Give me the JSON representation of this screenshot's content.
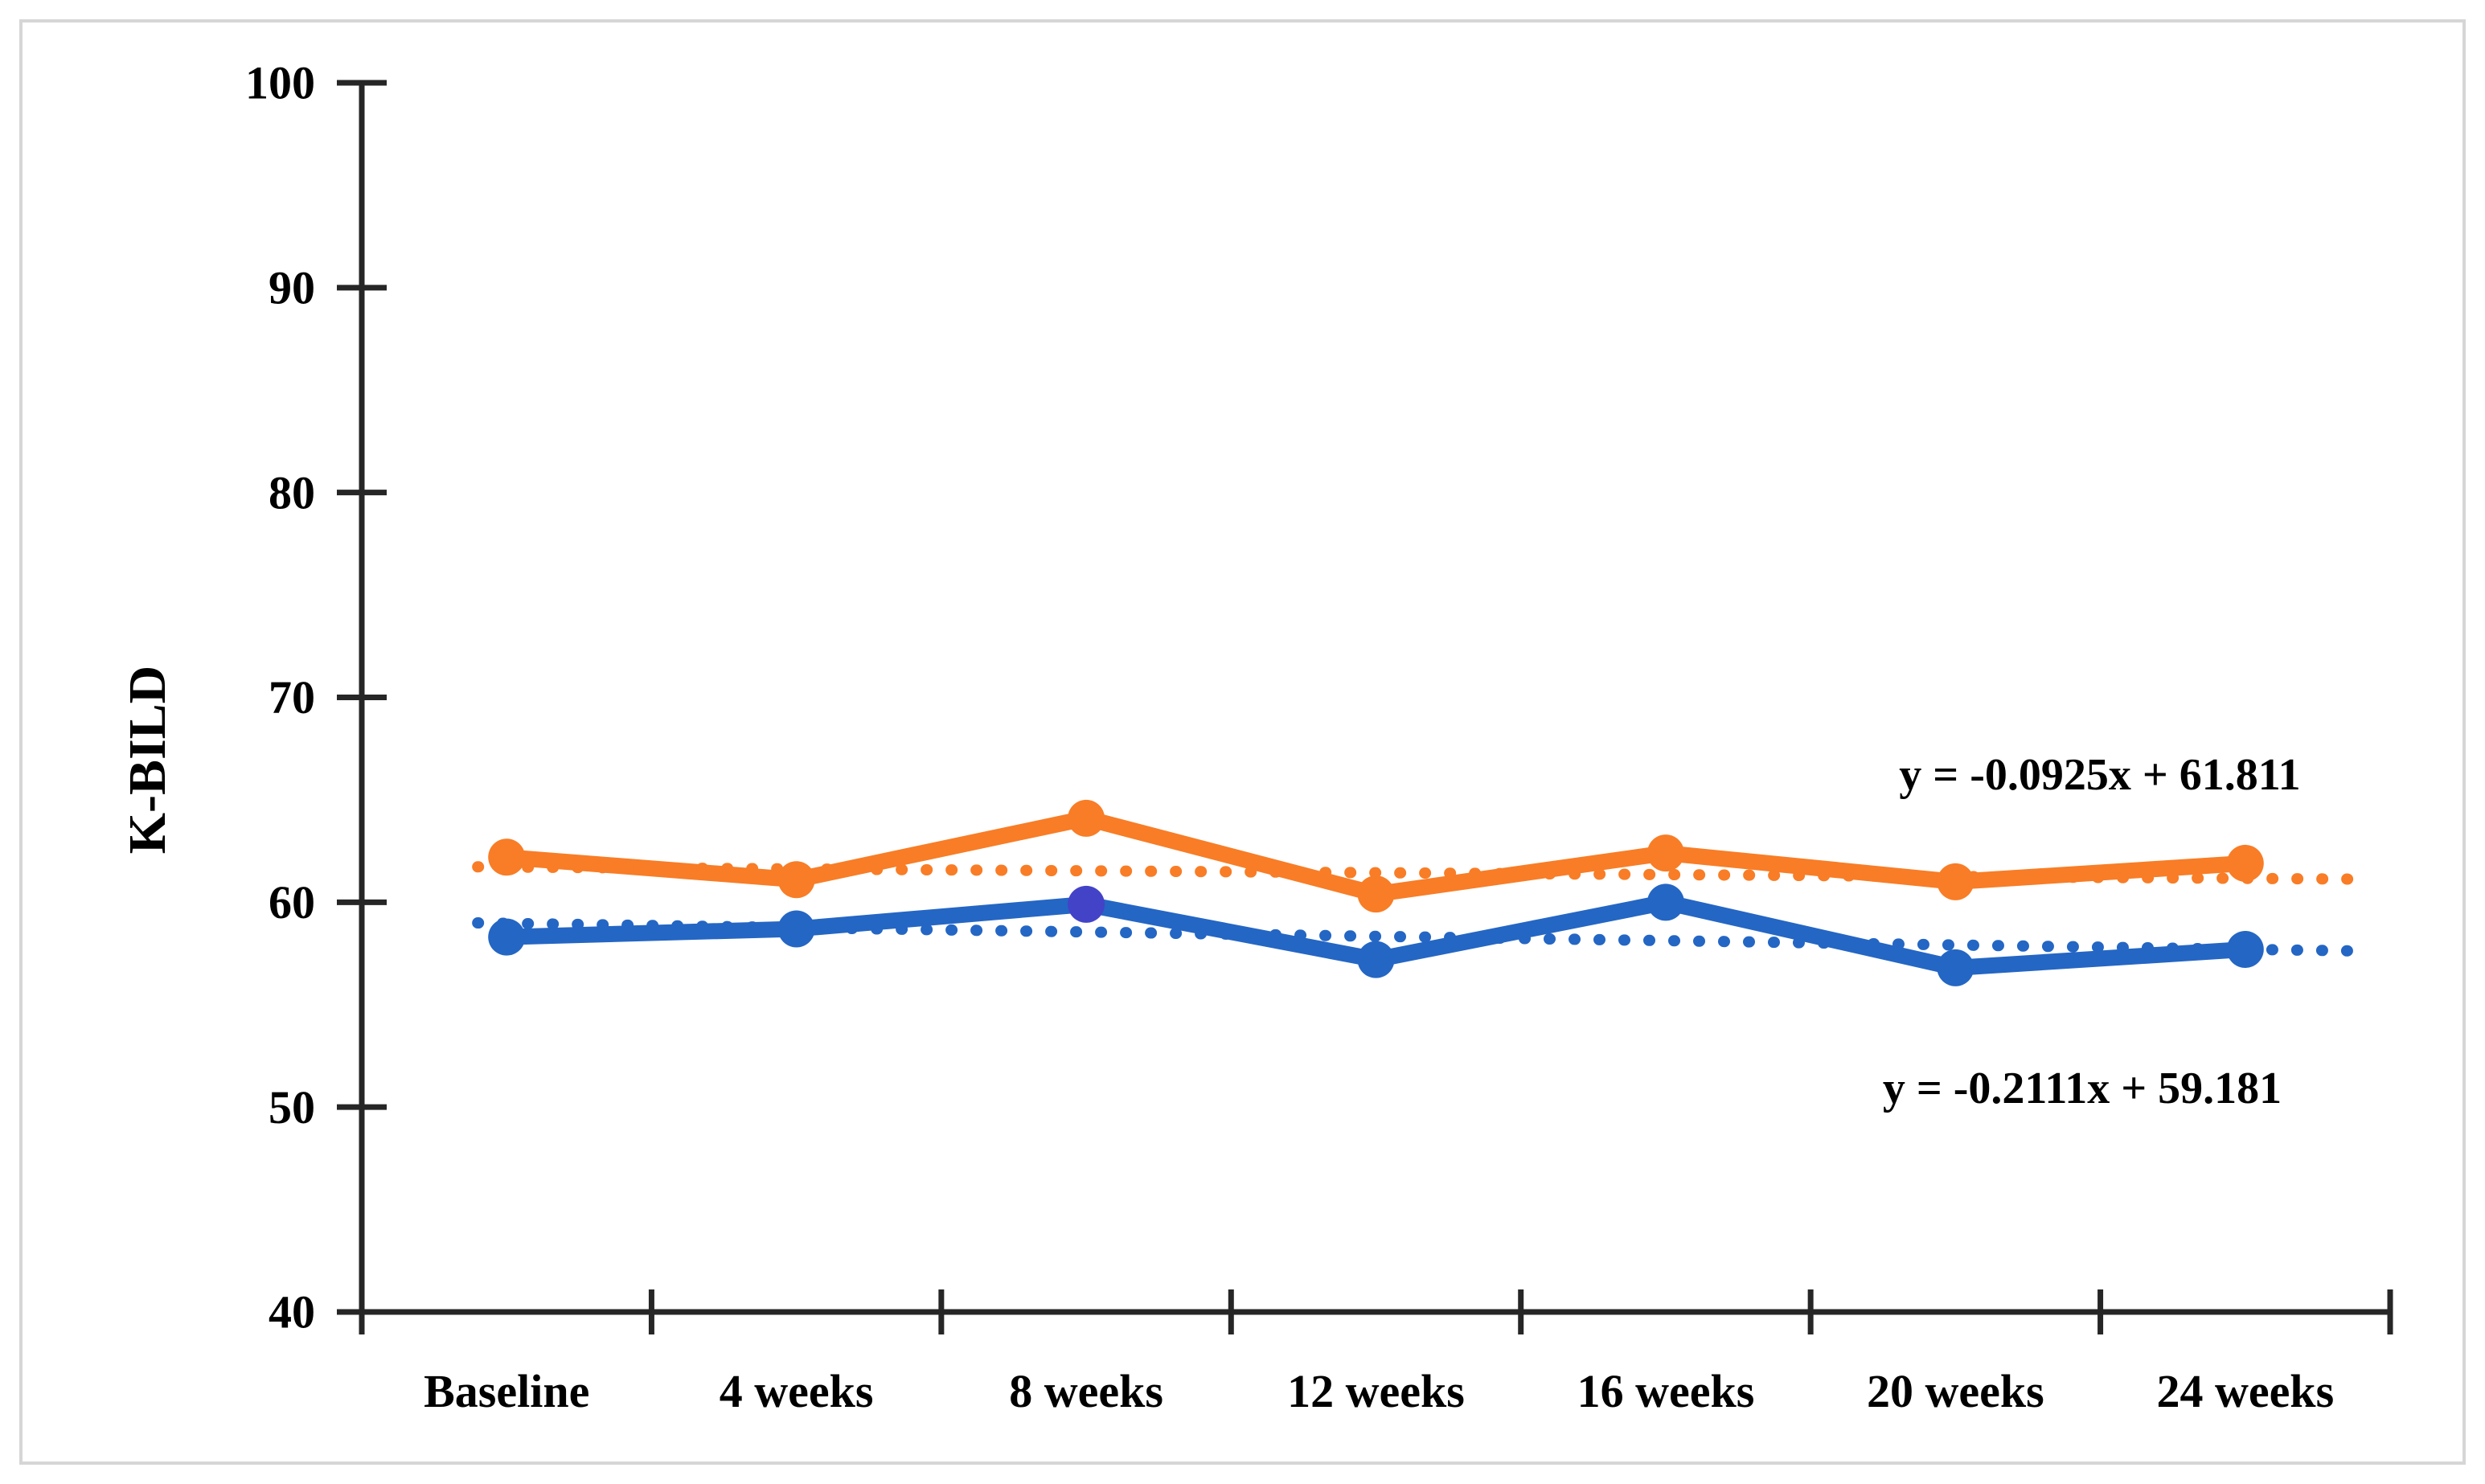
{
  "figure": {
    "background_color": "#ffffff",
    "border_color": "#d6d6d6",
    "axis_color": "#262626",
    "text_color": "#000000"
  },
  "chart_data": {
    "type": "line",
    "title": "",
    "xlabel": "",
    "ylabel": "K-BILD",
    "categories": [
      "Baseline",
      "4 weeks",
      "8 weeks",
      "12 weeks",
      "16 weeks",
      "20 weeks",
      "24 weeks"
    ],
    "ylim": [
      40,
      100
    ],
    "yticks": [
      40,
      50,
      60,
      70,
      80,
      90,
      100
    ],
    "grid": false,
    "legend": "none",
    "series": [
      {
        "name": "orange-upper",
        "color": "#F87D26",
        "values": [
          62.2,
          61.1,
          64.1,
          60.4,
          62.4,
          61.0,
          61.9
        ],
        "marker": "round",
        "special_marker": null
      },
      {
        "name": "blue-lower",
        "color": "#2466C4",
        "values": [
          58.3,
          58.7,
          59.9,
          57.2,
          60.0,
          56.8,
          57.7
        ],
        "marker": "round",
        "special_marker": {
          "index": 2,
          "color": "#4343C8"
        }
      }
    ],
    "trendlines": [
      {
        "series": "orange-upper",
        "equation": "y = -0.0925x + 61.811",
        "slope": -0.0925,
        "intercept": 61.811,
        "color": "#F87D26",
        "style": "dotted"
      },
      {
        "series": "blue-lower",
        "equation": "y = -0.2111x + 59.181",
        "slope": -0.2111,
        "intercept": 59.181,
        "color": "#2466C4",
        "style": "dotted"
      }
    ]
  }
}
